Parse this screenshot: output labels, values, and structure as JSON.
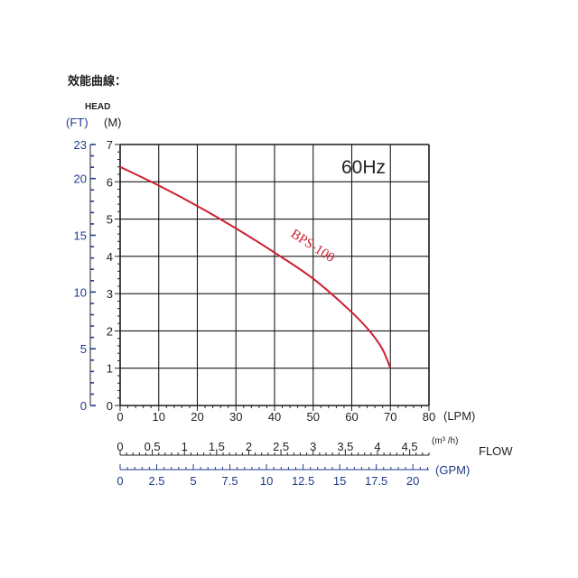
{
  "page": {
    "caption": "效能曲線："
  },
  "chart_data": {
    "type": "line",
    "panel_label": "60Hz",
    "head_label": "HEAD",
    "flow_label": "FLOW",
    "colors": {
      "curve": "#cc1f2f",
      "ft_axis": "#1f3a8a",
      "gpm_axis": "#1f3a8a",
      "grid": "#1a1a1a"
    },
    "axes": {
      "y_m": {
        "unit": "(M)",
        "range": [
          0,
          7
        ],
        "ticks": [
          "0",
          "1",
          "2",
          "3",
          "4",
          "5",
          "6",
          "7"
        ]
      },
      "y_ft": {
        "unit": "(FT)",
        "range": [
          0,
          23
        ],
        "labels": [
          "0",
          "5",
          "10",
          "15",
          "20",
          "23"
        ]
      },
      "x_lpm": {
        "unit": "(LPM)",
        "range": [
          0,
          80
        ],
        "ticks": [
          "0",
          "10",
          "20",
          "30",
          "40",
          "50",
          "60",
          "70",
          "80"
        ]
      },
      "x_m3h": {
        "unit": "(m³ /h)",
        "range": [
          0,
          4.8
        ],
        "labels": [
          "0",
          "0.5",
          "1",
          "1.5",
          "2",
          "2.5",
          "3",
          "3.5",
          "4",
          "4.5"
        ]
      },
      "x_gpm": {
        "unit": "(GPM)",
        "range": [
          0,
          21.1
        ],
        "labels": [
          "0",
          "2.5",
          "5",
          "7.5",
          "10",
          "12.5",
          "15",
          "17.5",
          "20"
        ]
      }
    },
    "grid": true,
    "series": [
      {
        "name": "BPS-100",
        "x": [
          0,
          10,
          20,
          30,
          40,
          50,
          60,
          65,
          68,
          70
        ],
        "y": [
          6.4,
          5.9,
          5.35,
          4.75,
          4.1,
          3.4,
          2.5,
          1.95,
          1.5,
          1.0
        ]
      }
    ]
  }
}
